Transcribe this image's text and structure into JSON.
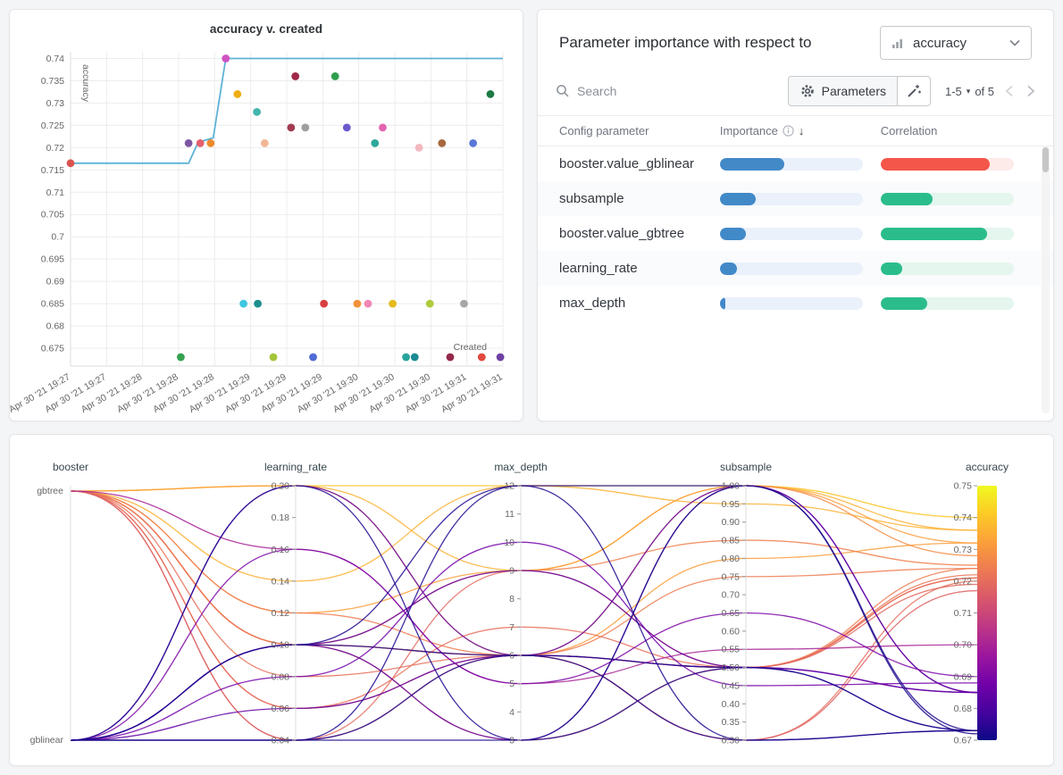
{
  "scatter_panel": {
    "title": "accuracy v. created",
    "xlabel": "Created",
    "ylabel": "accuracy"
  },
  "importance_panel": {
    "title": "Parameter importance with respect to",
    "metric_dropdown": {
      "selected": "accuracy"
    },
    "search": {
      "placeholder": "Search"
    },
    "parameters_label": "Parameters",
    "pagination": {
      "range": "1-5",
      "caret": "▾",
      "of": "of 5"
    },
    "columns": {
      "parameter": "Config parameter",
      "importance": "Importance",
      "correlation": "Correlation"
    },
    "colors": {
      "importance_bar": "#4289c8",
      "positive_correlation_bar": "#2abd8b",
      "negative_correlation_bar": "#f4564a"
    },
    "rows": [
      {
        "name": "booster.value_gblinear",
        "importance": 0.45,
        "correlation": -0.82
      },
      {
        "name": "subsample",
        "importance": 0.25,
        "correlation": 0.39
      },
      {
        "name": "booster.value_gbtree",
        "importance": 0.18,
        "correlation": 0.8
      },
      {
        "name": "learning_rate",
        "importance": 0.12,
        "correlation": 0.16
      },
      {
        "name": "max_depth",
        "importance": 0.04,
        "correlation": 0.35
      }
    ]
  },
  "chart_data": [
    {
      "type": "scatter",
      "title": "accuracy v. created",
      "xlabel": "Created",
      "ylabel": "accuracy",
      "x_unit": "fraction of time axis from first to last tick",
      "x_ticks": [
        "Apr 30 '21 19:27",
        "Apr 30 '21 19:27",
        "Apr 30 '21 19:28",
        "Apr 30 '21 19:28",
        "Apr 30 '21 19:28",
        "Apr 30 '21 19:29",
        "Apr 30 '21 19:29",
        "Apr 30 '21 19:29",
        "Apr 30 '21 19:30",
        "Apr 30 '21 19:30",
        "Apr 30 '21 19:30",
        "Apr 30 '21 19:31",
        "Apr 30 '21 19:31"
      ],
      "y_ticks": [
        0.675,
        0.68,
        0.685,
        0.69,
        0.695,
        0.7,
        0.705,
        0.71,
        0.715,
        0.72,
        0.725,
        0.73,
        0.735,
        0.74
      ],
      "ylim": [
        0.671,
        0.7415
      ],
      "trend_line": {
        "color": "#5eb2d6",
        "points": [
          [
            0.0,
            0.7165
          ],
          [
            0.273,
            0.7165
          ],
          [
            0.295,
            0.7212
          ],
          [
            0.33,
            0.7222
          ],
          [
            0.359,
            0.74
          ],
          [
            1.0,
            0.74
          ]
        ]
      },
      "points": [
        {
          "x": 0.0,
          "y": 0.7165,
          "color": "#d9534f"
        },
        {
          "x": 0.273,
          "y": 0.721,
          "color": "#7e57a2"
        },
        {
          "x": 0.3,
          "y": 0.721,
          "color": "#e4606d"
        },
        {
          "x": 0.324,
          "y": 0.721,
          "color": "#ef8a2c"
        },
        {
          "x": 0.359,
          "y": 0.74,
          "color": "#cf52c3"
        },
        {
          "x": 0.386,
          "y": 0.732,
          "color": "#efae13"
        },
        {
          "x": 0.431,
          "y": 0.728,
          "color": "#46b5ad"
        },
        {
          "x": 0.449,
          "y": 0.721,
          "color": "#f2b596"
        },
        {
          "x": 0.51,
          "y": 0.7245,
          "color": "#a23b52"
        },
        {
          "x": 0.52,
          "y": 0.736,
          "color": "#a02848"
        },
        {
          "x": 0.543,
          "y": 0.7245,
          "color": "#9e9e9e"
        },
        {
          "x": 0.612,
          "y": 0.736,
          "color": "#2f9e4e"
        },
        {
          "x": 0.639,
          "y": 0.7245,
          "color": "#6a5acd"
        },
        {
          "x": 0.704,
          "y": 0.721,
          "color": "#2fa79c"
        },
        {
          "x": 0.722,
          "y": 0.7245,
          "color": "#e265b0"
        },
        {
          "x": 0.806,
          "y": 0.72,
          "color": "#f4b8c0"
        },
        {
          "x": 0.859,
          "y": 0.721,
          "color": "#a8673e"
        },
        {
          "x": 0.931,
          "y": 0.721,
          "color": "#5a78d6"
        },
        {
          "x": 0.971,
          "y": 0.732,
          "color": "#1d7a45"
        },
        {
          "x": 0.4,
          "y": 0.685,
          "color": "#3ec6e0"
        },
        {
          "x": 0.433,
          "y": 0.685,
          "color": "#1d8f8f"
        },
        {
          "x": 0.586,
          "y": 0.685,
          "color": "#d84040"
        },
        {
          "x": 0.663,
          "y": 0.685,
          "color": "#f2923a"
        },
        {
          "x": 0.688,
          "y": 0.685,
          "color": "#f087b5"
        },
        {
          "x": 0.745,
          "y": 0.685,
          "color": "#e5bb1c"
        },
        {
          "x": 0.831,
          "y": 0.685,
          "color": "#aecb3c"
        },
        {
          "x": 0.91,
          "y": 0.685,
          "color": "#a6a6a6"
        },
        {
          "x": 0.255,
          "y": 0.673,
          "color": "#33a251"
        },
        {
          "x": 0.469,
          "y": 0.673,
          "color": "#a4c63a"
        },
        {
          "x": 0.561,
          "y": 0.673,
          "color": "#4f6bd5"
        },
        {
          "x": 0.776,
          "y": 0.673,
          "color": "#27a59b"
        },
        {
          "x": 0.796,
          "y": 0.673,
          "color": "#1b8a93"
        },
        {
          "x": 0.878,
          "y": 0.673,
          "color": "#93284a"
        },
        {
          "x": 0.951,
          "y": 0.673,
          "color": "#e2483d"
        },
        {
          "x": 0.994,
          "y": 0.673,
          "color": "#6f41a5"
        }
      ]
    },
    {
      "type": "parallel_coordinates",
      "axes": [
        {
          "name": "booster",
          "kind": "categorical",
          "categories": [
            "gbtree",
            "gblinear"
          ]
        },
        {
          "name": "learning_rate",
          "kind": "numeric",
          "min": 0.04,
          "max": 0.2,
          "decimals": 2,
          "ticks": [
            0.2,
            0.18,
            0.16,
            0.14,
            0.12,
            0.1,
            0.08,
            0.06,
            0.04
          ]
        },
        {
          "name": "max_depth",
          "kind": "numeric",
          "min": 3,
          "max": 12,
          "decimals": 0,
          "ticks": [
            12,
            11,
            10,
            9,
            8,
            7,
            6,
            5,
            4,
            3
          ]
        },
        {
          "name": "subsample",
          "kind": "numeric",
          "min": 0.3,
          "max": 1.0,
          "decimals": 2,
          "ticks": [
            1.0,
            0.95,
            0.9,
            0.85,
            0.8,
            0.75,
            0.7,
            0.65,
            0.6,
            0.55,
            0.5,
            0.45,
            0.4,
            0.35,
            0.3
          ]
        },
        {
          "name": "accuracy",
          "kind": "colorbar",
          "min": 0.67,
          "max": 0.75,
          "decimals": 2,
          "ticks": [
            0.75,
            0.74,
            0.73,
            0.72,
            0.71,
            0.7,
            0.69,
            0.68,
            0.67
          ]
        }
      ],
      "colormap": [
        "#0d0887",
        "#46039f",
        "#7201a8",
        "#9c179e",
        "#bd3786",
        "#d8576b",
        "#ed7953",
        "#fb9f3a",
        "#fdca26",
        "#f0f921"
      ],
      "runs": [
        {
          "booster": "gbtree",
          "learning_rate": 0.2,
          "max_depth": 12,
          "subsample": 1.0,
          "accuracy": 0.74
        },
        {
          "booster": "gbtree",
          "learning_rate": 0.2,
          "max_depth": 9,
          "subsample": 1.0,
          "accuracy": 0.736
        },
        {
          "booster": "gbtree",
          "learning_rate": 0.14,
          "max_depth": 12,
          "subsample": 0.95,
          "accuracy": 0.736
        },
        {
          "booster": "gbtree",
          "learning_rate": 0.2,
          "max_depth": 6,
          "subsample": 0.8,
          "accuracy": 0.732
        },
        {
          "booster": "gbtree",
          "learning_rate": 0.12,
          "max_depth": 9,
          "subsample": 1.0,
          "accuracy": 0.732
        },
        {
          "booster": "gbtree",
          "learning_rate": 0.1,
          "max_depth": 6,
          "subsample": 1.0,
          "accuracy": 0.728
        },
        {
          "booster": "gbtree",
          "learning_rate": 0.1,
          "max_depth": 9,
          "subsample": 0.85,
          "accuracy": 0.725
        },
        {
          "booster": "gbtree",
          "learning_rate": 0.12,
          "max_depth": 6,
          "subsample": 0.75,
          "accuracy": 0.724
        },
        {
          "booster": "gbtree",
          "learning_rate": 0.1,
          "max_depth": 6,
          "subsample": 0.5,
          "accuracy": 0.724
        },
        {
          "booster": "gbtree",
          "learning_rate": 0.1,
          "max_depth": 3,
          "subsample": 0.5,
          "accuracy": 0.722
        },
        {
          "booster": "gbtree",
          "learning_rate": 0.08,
          "max_depth": 6,
          "subsample": 0.5,
          "accuracy": 0.721
        },
        {
          "booster": "gbtree",
          "learning_rate": 0.06,
          "max_depth": 7,
          "subsample": 0.5,
          "accuracy": 0.721
        },
        {
          "booster": "gbtree",
          "learning_rate": 0.06,
          "max_depth": 6,
          "subsample": 0.3,
          "accuracy": 0.72
        },
        {
          "booster": "gbtree",
          "learning_rate": 0.04,
          "max_depth": 9,
          "subsample": 0.5,
          "accuracy": 0.719
        },
        {
          "booster": "gbtree",
          "learning_rate": 0.04,
          "max_depth": 6,
          "subsample": 0.3,
          "accuracy": 0.717
        },
        {
          "booster": "gbtree",
          "learning_rate": 0.16,
          "max_depth": 5,
          "subsample": 0.55,
          "accuracy": 0.7
        },
        {
          "booster": "gblinear",
          "learning_rate": 0.2,
          "max_depth": 6,
          "subsample": 1.0,
          "accuracy": 0.685
        },
        {
          "booster": "gblinear",
          "learning_rate": 0.1,
          "max_depth": 9,
          "subsample": 0.5,
          "accuracy": 0.685
        },
        {
          "booster": "gblinear",
          "learning_rate": 0.1,
          "max_depth": 3,
          "subsample": 1.0,
          "accuracy": 0.685
        },
        {
          "booster": "gblinear",
          "learning_rate": 0.06,
          "max_depth": 6,
          "subsample": 0.5,
          "accuracy": 0.685
        },
        {
          "booster": "gblinear",
          "learning_rate": 0.16,
          "max_depth": 5,
          "subsample": 0.65,
          "accuracy": 0.69
        },
        {
          "booster": "gblinear",
          "learning_rate": 0.08,
          "max_depth": 10,
          "subsample": 0.45,
          "accuracy": 0.688
        },
        {
          "booster": "gblinear",
          "learning_rate": 0.04,
          "max_depth": 12,
          "subsample": 0.3,
          "accuracy": 0.673
        },
        {
          "booster": "gblinear",
          "learning_rate": 0.04,
          "max_depth": 6,
          "subsample": 0.5,
          "accuracy": 0.673
        },
        {
          "booster": "gblinear",
          "learning_rate": 0.1,
          "max_depth": 6,
          "subsample": 0.3,
          "accuracy": 0.673
        },
        {
          "booster": "gblinear",
          "learning_rate": 0.1,
          "max_depth": 12,
          "subsample": 1.0,
          "accuracy": 0.673
        },
        {
          "booster": "gblinear",
          "learning_rate": 0.2,
          "max_depth": 3,
          "subsample": 0.5,
          "accuracy": 0.673
        },
        {
          "booster": "gblinear",
          "learning_rate": 0.04,
          "max_depth": 3,
          "subsample": 1.0,
          "accuracy": 0.672
        }
      ]
    }
  ]
}
